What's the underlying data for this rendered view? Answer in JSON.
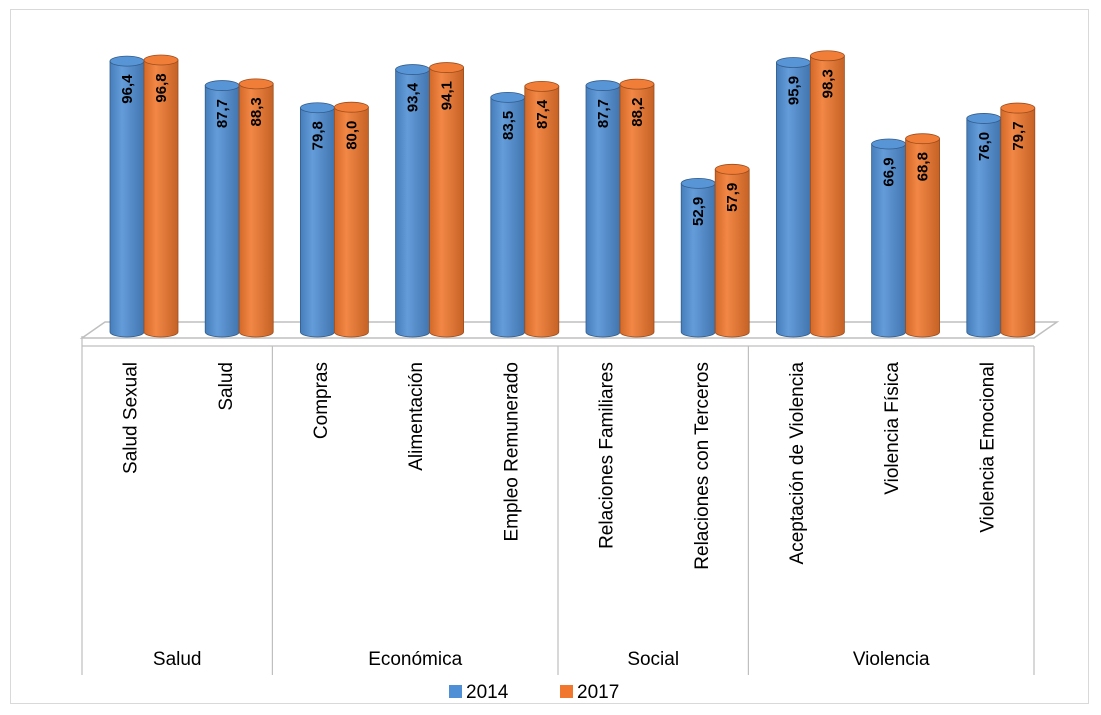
{
  "chart_data": {
    "type": "bar",
    "style": "3d-cylinder",
    "title": "",
    "xlabel": "",
    "ylabel": "",
    "ylim": [
      0,
      100
    ],
    "grid": false,
    "legend_position": "bottom",
    "categories": [
      "Salud Sexual",
      "Salud",
      "Compras",
      "Alimentación",
      "Empleo  Remunerado",
      "Relaciones Familiares",
      "Relaciones con Terceros",
      "Aceptación de Violencia",
      "Violencia Física",
      "Violencia Emocional"
    ],
    "groups": [
      {
        "label": "Salud",
        "span": 2
      },
      {
        "label": "Económica",
        "span": 3
      },
      {
        "label": "Social",
        "span": 2
      },
      {
        "label": "Violencia",
        "span": 3
      }
    ],
    "series": [
      {
        "name": "2014",
        "color": "#4F8FD5",
        "values": [
          96.4,
          87.7,
          79.8,
          93.4,
          83.5,
          87.7,
          52.9,
          95.9,
          66.9,
          76.0
        ],
        "labels": [
          "96,4",
          "87,7",
          "79,8",
          "93,4",
          "83,5",
          "87,7",
          "52,9",
          "95,9",
          "66,9",
          "76,0"
        ]
      },
      {
        "name": "2017",
        "color": "#F0772D",
        "values": [
          96.8,
          88.3,
          80.0,
          94.1,
          87.4,
          88.2,
          57.9,
          98.3,
          68.8,
          79.7
        ],
        "labels": [
          "96,8",
          "88,3",
          "80,0",
          "94,1",
          "87,4",
          "88,2",
          "57,9",
          "98,3",
          "68,8",
          "79,7"
        ]
      }
    ]
  }
}
